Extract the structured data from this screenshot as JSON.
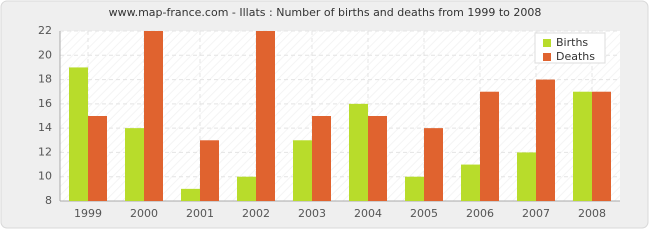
{
  "chart_data": {
    "type": "bar",
    "title": "www.map-france.com - Illats : Number of births and deaths from 1999 to 2008",
    "categories": [
      "1999",
      "2000",
      "2001",
      "2002",
      "2003",
      "2004",
      "2005",
      "2006",
      "2007",
      "2008"
    ],
    "series": [
      {
        "name": "Births",
        "color": "#b8dc2b",
        "values": [
          19,
          14,
          9,
          10,
          13,
          16,
          10,
          11,
          12,
          17
        ]
      },
      {
        "name": "Deaths",
        "color": "#e0632f",
        "values": [
          15,
          22,
          13,
          22,
          15,
          15,
          14,
          17,
          18,
          17
        ]
      }
    ],
    "ylim": [
      8,
      22
    ],
    "yticks": [
      8,
      10,
      12,
      14,
      16,
      18,
      20,
      22
    ],
    "grid": true,
    "legend": "upper right"
  }
}
